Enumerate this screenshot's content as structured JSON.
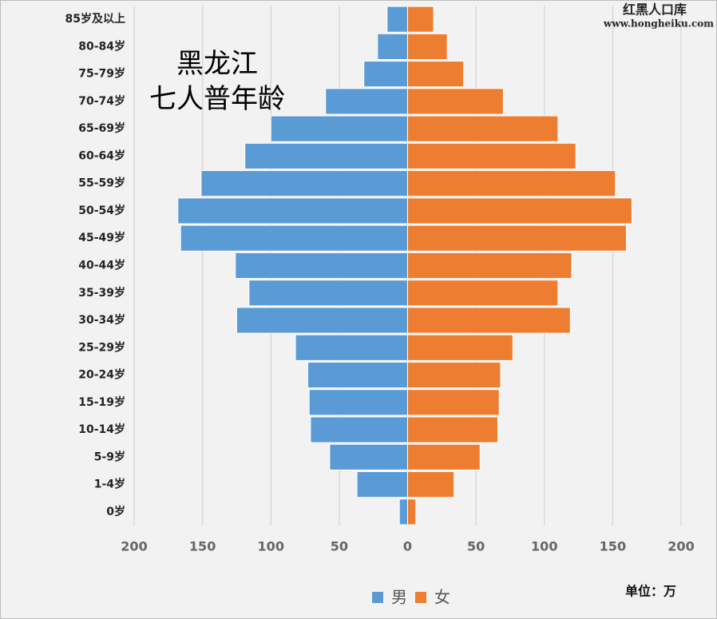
{
  "chart_data": {
    "type": "population_pyramid",
    "title_lines": [
      "黑龙江",
      "七人普年龄"
    ],
    "source": [
      "红黑人口库",
      "www.hongheiku.com"
    ],
    "unit": "单位：万",
    "categories": [
      "85岁及以上",
      "80-84岁",
      "75-79岁",
      "70-74岁",
      "65-69岁",
      "60-64岁",
      "55-59岁",
      "50-54岁",
      "45-49岁",
      "40-44岁",
      "35-39岁",
      "30-34岁",
      "25-29岁",
      "20-24岁",
      "15-19岁",
      "10-14岁",
      "5-9岁",
      "1-4岁",
      "0岁"
    ],
    "series": [
      {
        "name": "男",
        "color": "#5b9bd5",
        "side": "left",
        "values": [
          15,
          22,
          32,
          60,
          100,
          119,
          151,
          168,
          166,
          126,
          116,
          125,
          82,
          73,
          72,
          71,
          57,
          37,
          6
        ]
      },
      {
        "name": "女",
        "color": "#ed7d31",
        "side": "right",
        "values": [
          19,
          29,
          41,
          70,
          110,
          123,
          152,
          164,
          160,
          120,
          110,
          119,
          77,
          68,
          67,
          66,
          53,
          34,
          6
        ]
      }
    ],
    "xlim": [
      -200,
      200
    ],
    "xticks": [
      {
        "value": -200,
        "label": "200"
      },
      {
        "value": -150,
        "label": "150"
      },
      {
        "value": -100,
        "label": "100"
      },
      {
        "value": -50,
        "label": "50"
      },
      0,
      50,
      100,
      150,
      {
        "value": 200,
        "label": "200"
      }
    ],
    "grid": true
  }
}
